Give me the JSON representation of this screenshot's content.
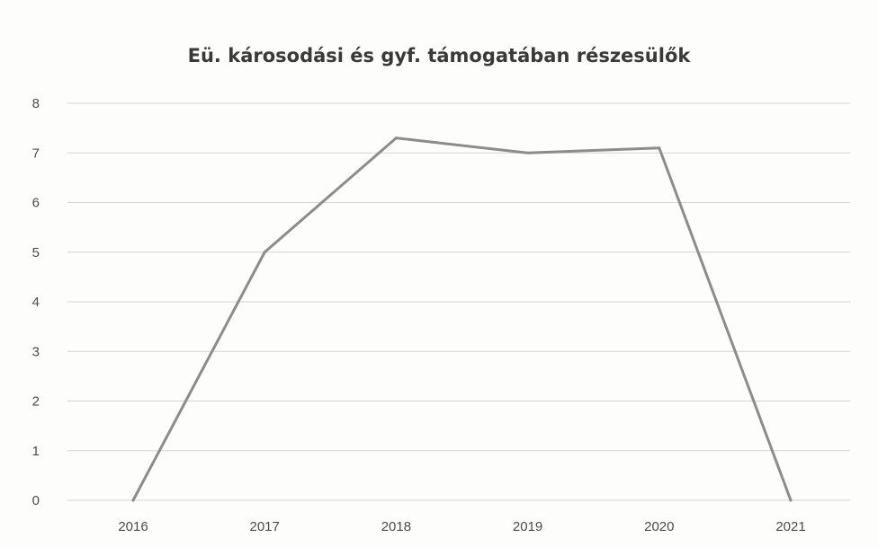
{
  "chart_data": {
    "type": "line",
    "title": "Eü. károsodási és gyf. támogatában részesülők",
    "xlabel": "",
    "ylabel": "",
    "categories": [
      "2016",
      "2017",
      "2018",
      "2019",
      "2020",
      "2021"
    ],
    "series": [
      {
        "values": [
          0,
          5,
          7.3,
          7.0,
          7.1,
          0
        ]
      }
    ],
    "ylim": [
      0,
      8
    ],
    "yticks": [
      "0",
      "1",
      "2",
      "3",
      "4",
      "5",
      "6",
      "7",
      "8"
    ],
    "grid": true,
    "legend": "none",
    "line_color": "#8c8c8c"
  }
}
